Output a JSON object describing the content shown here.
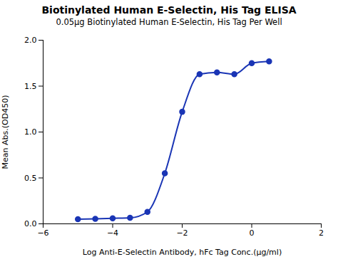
{
  "chart_data": {
    "type": "line",
    "title": "Biotinylated Human E-Selectin, His Tag ELISA",
    "subtitle": "0.05μg Biotinylated Human E-Selectin, His Tag Per Well",
    "xlabel": "Log Anti-E-Selectin Antibody, hFc Tag Conc.(μg/ml)",
    "ylabel": "Mean Abs.(OD450)",
    "x": [
      -5.0,
      -4.5,
      -4.0,
      -3.5,
      -3.0,
      -2.5,
      -2.0,
      -1.5,
      -1.0,
      -0.5,
      0.0,
      0.5
    ],
    "values": [
      0.05,
      0.055,
      0.06,
      0.065,
      0.13,
      0.55,
      1.22,
      1.63,
      1.65,
      1.63,
      1.75,
      1.77
    ],
    "color": "#1a35b5",
    "marker": "o",
    "xlim": [
      -6,
      2
    ],
    "ylim": [
      0,
      2.0
    ],
    "xticks": [
      -6,
      -4,
      -2,
      0,
      2
    ],
    "yticks": [
      {
        "value": 0.0,
        "label": "0.0"
      },
      0.5,
      {
        "value": 1.0,
        "label": "1.0"
      },
      1.5,
      {
        "value": 2.0,
        "label": "2.0"
      }
    ]
  }
}
